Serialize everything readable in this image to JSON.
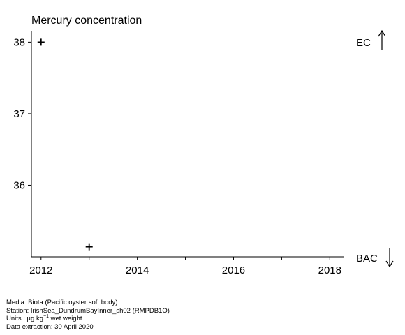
{
  "chart_data": {
    "type": "scatter",
    "title": "Mercury concentration",
    "xlabel": "",
    "ylabel": "",
    "xlim": [
      2011.8,
      2018.3
    ],
    "ylim": [
      35.0,
      38.15
    ],
    "x_ticks": [
      2012,
      2013,
      2014,
      2015,
      2016,
      2017,
      2018
    ],
    "x_tick_labels": [
      "2012",
      "2014",
      "2016",
      "2018"
    ],
    "y_ticks": [
      36,
      37,
      38
    ],
    "y_tick_labels": [
      "36",
      "37",
      "38"
    ],
    "marker": "plus",
    "grid": false,
    "series": [
      {
        "x": [
          2012.0,
          2013.0
        ],
        "y": [
          38.0,
          35.14
        ]
      }
    ],
    "thresholds": [
      {
        "label": "EC",
        "arrow": "up"
      },
      {
        "label": "BAC",
        "arrow": "down"
      }
    ]
  },
  "footer": {
    "media": "Media: Biota (Pacific oyster soft body)",
    "station": "Station: IrishSea_DundrumBayInner_sh02 (RMPDB1O)",
    "units_prefix": "Units : µg kg",
    "units_exponent": "−1",
    "units_suffix": " wet weight",
    "extraction": "Data extraction: 30 April 2020"
  }
}
